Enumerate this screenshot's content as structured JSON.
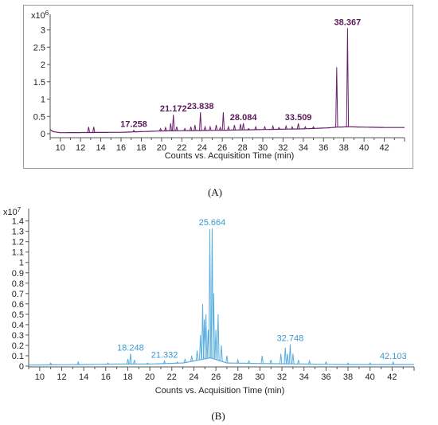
{
  "panels": [
    {
      "id": "A",
      "label": "(A)",
      "color": "#6b1f6b",
      "peak_label_color": "#5a1a5a",
      "chart_data": {
        "type": "line",
        "xlabel": "Counts vs. Acquisition Time (min)",
        "y_multiplier": "x10",
        "y_exponent": "6",
        "xlim": [
          9,
          44
        ],
        "ylim": [
          0,
          3.45
        ],
        "xticks": [
          10,
          12,
          14,
          16,
          18,
          20,
          22,
          24,
          26,
          28,
          30,
          32,
          34,
          36,
          38,
          40,
          42
        ],
        "yticks": [
          0,
          0.5,
          1,
          1.5,
          2,
          2.5,
          3
        ],
        "ytick_labels": [
          "0",
          "0.5",
          "1",
          "1.5",
          "2",
          "2.5",
          "3"
        ],
        "baseline": [
          [
            9,
            0.12
          ],
          [
            9.3,
            0.06
          ],
          [
            10,
            0.03
          ],
          [
            16,
            0.04
          ],
          [
            20,
            0.08
          ],
          [
            26,
            0.1
          ],
          [
            30,
            0.12
          ],
          [
            34,
            0.14
          ],
          [
            36.5,
            0.17
          ],
          [
            37.3,
            0.19
          ],
          [
            38.5,
            0.2
          ],
          [
            40,
            0.19
          ],
          [
            42,
            0.18
          ],
          [
            44,
            0.18
          ]
        ],
        "peaks": [
          [
            12.8,
            0.2
          ],
          [
            13.3,
            0.2
          ],
          [
            17.26,
            0.1
          ],
          [
            19.9,
            0.15
          ],
          [
            20.4,
            0.18
          ],
          [
            20.9,
            0.3
          ],
          [
            21.17,
            0.55
          ],
          [
            21.5,
            0.2
          ],
          [
            22.3,
            0.15
          ],
          [
            22.9,
            0.2
          ],
          [
            23.3,
            0.25
          ],
          [
            23.84,
            0.62
          ],
          [
            24.3,
            0.2
          ],
          [
            24.8,
            0.2
          ],
          [
            25.4,
            0.25
          ],
          [
            25.8,
            0.18
          ],
          [
            26.1,
            0.62
          ],
          [
            26.6,
            0.2
          ],
          [
            27.2,
            0.25
          ],
          [
            27.8,
            0.28
          ],
          [
            28.08,
            0.3
          ],
          [
            28.6,
            0.15
          ],
          [
            29.3,
            0.2
          ],
          [
            30.2,
            0.2
          ],
          [
            31.0,
            0.22
          ],
          [
            31.6,
            0.18
          ],
          [
            32.3,
            0.22
          ],
          [
            32.9,
            0.2
          ],
          [
            33.51,
            0.3
          ],
          [
            34.2,
            0.2
          ],
          [
            35.0,
            0.2
          ],
          [
            37.3,
            1.92
          ],
          [
            38.37,
            3.05
          ]
        ],
        "annotations": [
          {
            "x": 17.258,
            "text": "17.258"
          },
          {
            "x": 21.172,
            "text": "21.172"
          },
          {
            "x": 23.838,
            "text": "23.838"
          },
          {
            "x": 28.084,
            "text": "28.084"
          },
          {
            "x": 33.509,
            "text": "33.509"
          },
          {
            "x": 38.367,
            "text": "38.367"
          }
        ]
      }
    },
    {
      "id": "B",
      "label": "(B)",
      "color": "#5aaee0",
      "peak_label_color": "#3b97d3",
      "chart_data": {
        "type": "line",
        "xlabel": "Counts vs. Acquisition Time (min)",
        "y_multiplier": "x10",
        "y_exponent": "7",
        "xlim": [
          9,
          44
        ],
        "ylim": [
          0,
          1.52
        ],
        "xticks": [
          10,
          12,
          14,
          16,
          18,
          20,
          22,
          24,
          26,
          28,
          30,
          32,
          34,
          36,
          38,
          40,
          42
        ],
        "yticks": [
          0,
          0.1,
          0.2,
          0.3,
          0.4,
          0.5,
          0.6,
          0.7,
          0.8,
          0.9,
          1,
          1.1,
          1.2,
          1.3,
          1.4
        ],
        "ytick_labels": [
          "0",
          "0.1",
          "0.2",
          "0.3",
          "0.4",
          "0.5",
          "0.6",
          "0.7",
          "0.8",
          "0.9",
          "1",
          "1.1",
          "1.2",
          "1.3",
          "1.4"
        ],
        "baseline": [
          [
            9,
            0.01
          ],
          [
            14,
            0.015
          ],
          [
            17,
            0.02
          ],
          [
            20,
            0.02
          ],
          [
            23,
            0.03
          ],
          [
            24.5,
            0.06
          ],
          [
            25.5,
            0.08
          ],
          [
            27,
            0.03
          ],
          [
            30,
            0.025
          ],
          [
            34,
            0.02
          ],
          [
            38,
            0.015
          ],
          [
            42,
            0.015
          ],
          [
            44,
            0.015
          ]
        ],
        "peaks": [
          [
            11.0,
            0.03
          ],
          [
            13.5,
            0.04
          ],
          [
            16.2,
            0.03
          ],
          [
            18.0,
            0.07
          ],
          [
            18.25,
            0.12
          ],
          [
            18.6,
            0.06
          ],
          [
            19.8,
            0.03
          ],
          [
            21.33,
            0.05
          ],
          [
            22.5,
            0.04
          ],
          [
            23.2,
            0.07
          ],
          [
            23.8,
            0.1
          ],
          [
            24.3,
            0.15
          ],
          [
            24.6,
            0.3
          ],
          [
            24.8,
            0.6
          ],
          [
            24.95,
            0.45
          ],
          [
            25.1,
            0.5
          ],
          [
            25.3,
            0.35
          ],
          [
            25.45,
            1.32
          ],
          [
            25.66,
            1.33
          ],
          [
            25.8,
            0.7
          ],
          [
            26.0,
            0.35
          ],
          [
            26.2,
            0.5
          ],
          [
            26.5,
            0.2
          ],
          [
            27.0,
            0.1
          ],
          [
            28.0,
            0.06
          ],
          [
            29.0,
            0.05
          ],
          [
            30.2,
            0.1
          ],
          [
            31.0,
            0.06
          ],
          [
            31.9,
            0.12
          ],
          [
            32.3,
            0.18
          ],
          [
            32.5,
            0.12
          ],
          [
            32.75,
            0.21
          ],
          [
            33.0,
            0.12
          ],
          [
            33.5,
            0.06
          ],
          [
            34.5,
            0.05
          ],
          [
            36.0,
            0.04
          ],
          [
            38.0,
            0.03
          ],
          [
            40.0,
            0.03
          ],
          [
            42.1,
            0.04
          ]
        ],
        "annotations": [
          {
            "x": 18.248,
            "text": "18.248"
          },
          {
            "x": 21.332,
            "text": "21.332"
          },
          {
            "x": 25.664,
            "text": "25.664"
          },
          {
            "x": 32.748,
            "text": "32.748"
          },
          {
            "x": 42.103,
            "text": "42.103"
          }
        ]
      }
    }
  ]
}
